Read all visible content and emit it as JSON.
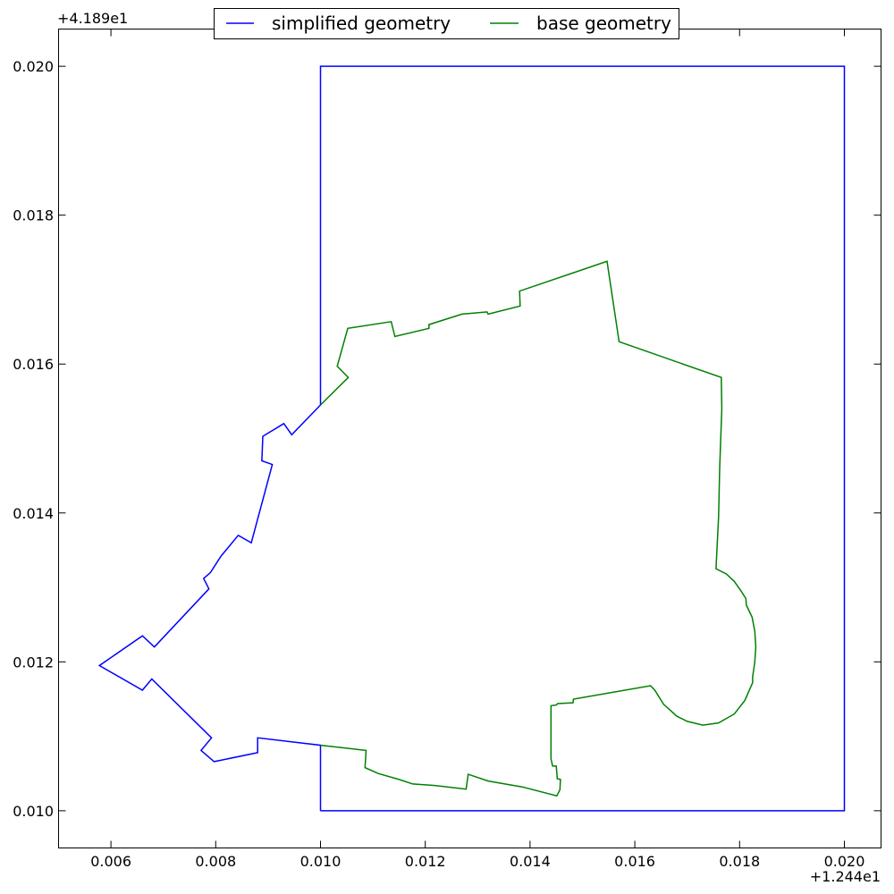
{
  "chart_data": {
    "type": "line",
    "title": "",
    "xlabel": "",
    "ylabel": "",
    "xlim": [
      0.005,
      0.0207
    ],
    "ylim": [
      0.0095,
      0.0205
    ],
    "x_offset_label": "+1.244e1",
    "y_offset_label": "+4.189e1",
    "x_ticks": [
      0.006,
      0.008,
      0.01,
      0.012,
      0.014,
      0.016,
      0.018,
      0.02
    ],
    "x_tick_labels": [
      "0.006",
      "0.008",
      "0.010",
      "0.012",
      "0.014",
      "0.016",
      "0.018",
      "0.020"
    ],
    "y_ticks": [
      0.01,
      0.012,
      0.014,
      0.016,
      0.018,
      0.02
    ],
    "y_tick_labels": [
      "0.010",
      "0.012",
      "0.014",
      "0.016",
      "0.018",
      "0.020"
    ],
    "grid": false,
    "legend_position": "top-center",
    "series": [
      {
        "name": "simplified geometry",
        "color": "#0000ff",
        "points": [
          [
            0.01,
            0.01
          ],
          [
            0.02,
            0.01
          ],
          [
            0.02,
            0.02
          ],
          [
            0.01,
            0.02
          ],
          [
            0.01,
            0.01545
          ],
          [
            0.00945,
            0.01505
          ],
          [
            0.0093,
            0.0152
          ],
          [
            0.0089,
            0.01503
          ],
          [
            0.00888,
            0.0147
          ],
          [
            0.00908,
            0.01465
          ],
          [
            0.00868,
            0.0136
          ],
          [
            0.00843,
            0.0137
          ],
          [
            0.0081,
            0.01342
          ],
          [
            0.0079,
            0.0132
          ],
          [
            0.00777,
            0.01312
          ],
          [
            0.00787,
            0.01298
          ],
          [
            0.00683,
            0.0122
          ],
          [
            0.0066,
            0.01235
          ],
          [
            0.00578,
            0.01195
          ],
          [
            0.0066,
            0.01162
          ],
          [
            0.00678,
            0.01177
          ],
          [
            0.00792,
            0.01098
          ],
          [
            0.00772,
            0.01081
          ],
          [
            0.00797,
            0.01066
          ],
          [
            0.0088,
            0.01078
          ],
          [
            0.0088,
            0.01098
          ],
          [
            0.01,
            0.01088
          ],
          [
            0.01,
            0.01
          ]
        ]
      },
      {
        "name": "base geometry",
        "color": "#008000",
        "points": [
          [
            0.01,
            0.01545
          ],
          [
            0.01053,
            0.01582
          ],
          [
            0.01032,
            0.01597
          ],
          [
            0.01052,
            0.01648
          ],
          [
            0.01135,
            0.01657
          ],
          [
            0.01142,
            0.01637
          ],
          [
            0.01207,
            0.01648
          ],
          [
            0.01207,
            0.01653
          ],
          [
            0.0127,
            0.01667
          ],
          [
            0.01318,
            0.0167
          ],
          [
            0.0132,
            0.01667
          ],
          [
            0.01381,
            0.01678
          ],
          [
            0.0138,
            0.01698
          ],
          [
            0.01547,
            0.01738
          ],
          [
            0.0157,
            0.0163
          ],
          [
            0.01765,
            0.01582
          ],
          [
            0.01766,
            0.0154
          ],
          [
            0.01762,
            0.0146
          ],
          [
            0.0176,
            0.01395
          ],
          [
            0.01755,
            0.01325
          ],
          [
            0.01775,
            0.01318
          ],
          [
            0.0179,
            0.01308
          ],
          [
            0.01803,
            0.01295
          ],
          [
            0.01812,
            0.01285
          ],
          [
            0.01813,
            0.01276
          ],
          [
            0.01824,
            0.0126
          ],
          [
            0.01829,
            0.01241
          ],
          [
            0.01831,
            0.0122
          ],
          [
            0.01829,
            0.012
          ],
          [
            0.01826,
            0.01185
          ],
          [
            0.01825,
            0.0118
          ],
          [
            0.01825,
            0.01172
          ],
          [
            0.0181,
            0.01148
          ],
          [
            0.0179,
            0.0113
          ],
          [
            0.0176,
            0.01118
          ],
          [
            0.0173,
            0.01115
          ],
          [
            0.017,
            0.0112
          ],
          [
            0.0168,
            0.01127
          ],
          [
            0.01655,
            0.01143
          ],
          [
            0.01638,
            0.01162
          ],
          [
            0.0163,
            0.01168
          ],
          [
            0.01483,
            0.0115
          ],
          [
            0.01482,
            0.01145
          ],
          [
            0.01453,
            0.01144
          ],
          [
            0.0145,
            0.01142
          ],
          [
            0.0144,
            0.01141
          ],
          [
            0.0144,
            0.0107
          ],
          [
            0.01443,
            0.0106
          ],
          [
            0.0145,
            0.0106
          ],
          [
            0.01452,
            0.01043
          ],
          [
            0.01458,
            0.01042
          ],
          [
            0.01457,
            0.01028
          ],
          [
            0.01451,
            0.0102
          ],
          [
            0.01385,
            0.01032
          ],
          [
            0.0132,
            0.0104
          ],
          [
            0.01282,
            0.01049
          ],
          [
            0.01278,
            0.01029
          ],
          [
            0.01218,
            0.01034
          ],
          [
            0.01176,
            0.01036
          ],
          [
            0.0115,
            0.01042
          ],
          [
            0.0111,
            0.0105
          ],
          [
            0.01085,
            0.01058
          ],
          [
            0.01087,
            0.01081
          ],
          [
            0.01,
            0.01088
          ]
        ]
      }
    ]
  }
}
